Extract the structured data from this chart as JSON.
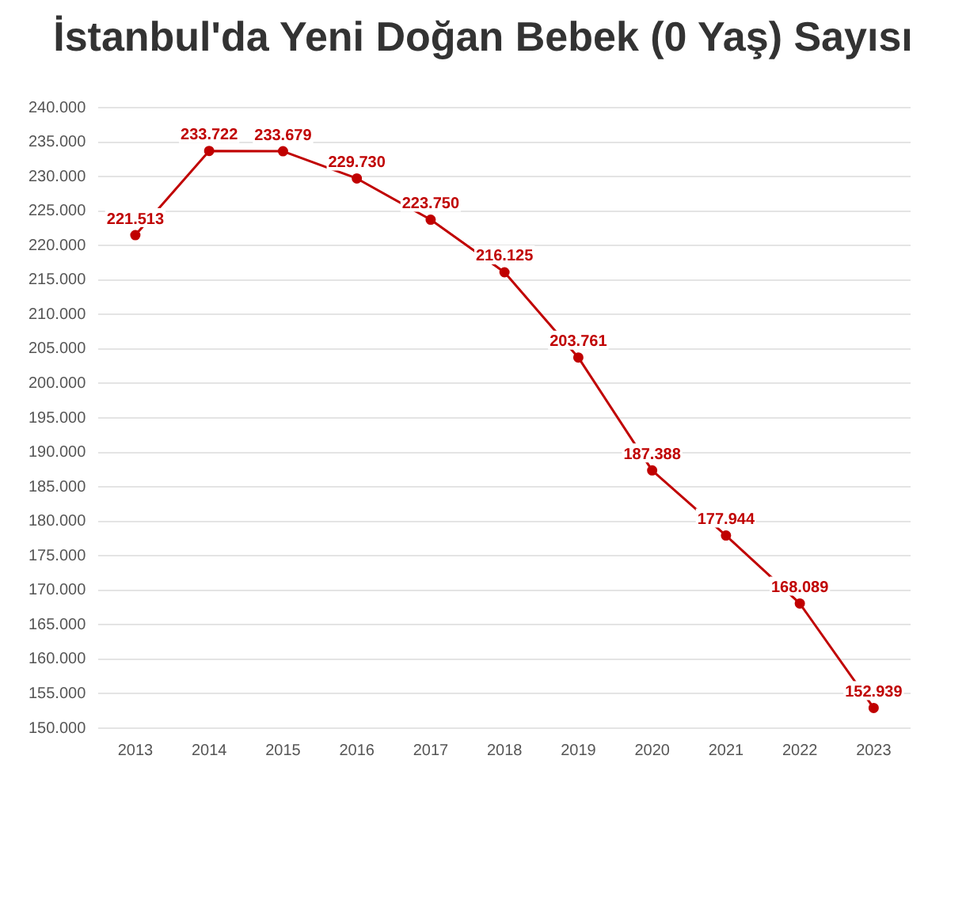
{
  "chart_data": {
    "type": "line",
    "title": "İstanbul'da Yeni Doğan Bebek (0 Yaş) Sayısı",
    "categories": [
      "2013",
      "2014",
      "2015",
      "2016",
      "2017",
      "2018",
      "2019",
      "2020",
      "2021",
      "2022",
      "2023"
    ],
    "series": [
      {
        "color": "#c00000",
        "values": [
          221513,
          233722,
          233679,
          229730,
          223750,
          216125,
          203761,
          187388,
          177944,
          168089,
          152939
        ],
        "value_labels": [
          "221.513",
          "233.722",
          "233.679",
          "229.730",
          "223.750",
          "216.125",
          "203.761",
          "187.388",
          "177.944",
          "168.089",
          "152.939"
        ]
      }
    ],
    "ylim": [
      150000,
      240000
    ],
    "yticks": [
      {
        "value": 150000,
        "label": "150.000"
      },
      {
        "value": 155000,
        "label": "155.000"
      },
      {
        "value": 160000,
        "label": "160.000"
      },
      {
        "value": 165000,
        "label": "165.000"
      },
      {
        "value": 170000,
        "label": "170.000"
      },
      {
        "value": 175000,
        "label": "175.000"
      },
      {
        "value": 180000,
        "label": "180.000"
      },
      {
        "value": 185000,
        "label": "185.000"
      },
      {
        "value": 190000,
        "label": "190.000"
      },
      {
        "value": 195000,
        "label": "195.000"
      },
      {
        "value": 200000,
        "label": "200.000"
      },
      {
        "value": 205000,
        "label": "205.000"
      },
      {
        "value": 210000,
        "label": "210.000"
      },
      {
        "value": 215000,
        "label": "215.000"
      },
      {
        "value": 220000,
        "label": "220.000"
      },
      {
        "value": 225000,
        "label": "225.000"
      },
      {
        "value": 230000,
        "label": "230.000"
      },
      {
        "value": 235000,
        "label": "235.000"
      },
      {
        "value": 240000,
        "label": "240.000"
      }
    ],
    "grid": "y",
    "marker": "circle",
    "line_style": "solid",
    "legend": false
  }
}
